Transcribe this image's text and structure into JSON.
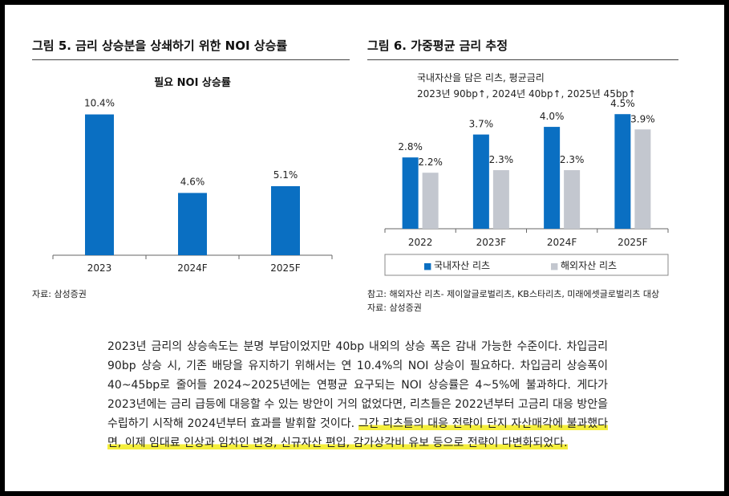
{
  "fig5": {
    "title": "그림 5. 금리 상승분을 상쇄하기 위한 NOI 상승률",
    "source": "자료: 삼성증권"
  },
  "fig6": {
    "title": "그림 6. 가중평균 금리 추정",
    "note": "참고: 해외자산 리츠- 제이알글로벌리츠, KB스타리츠, 미래에셋글로벌리츠 대상",
    "source": "자료: 삼성증권"
  },
  "chart_data": [
    {
      "type": "bar",
      "title": "필요 NOI 상승률",
      "categories": [
        "2023",
        "2024F",
        "2025F"
      ],
      "values": [
        10.4,
        4.6,
        5.1
      ],
      "data_labels": [
        "10.4%",
        "4.6%",
        "5.1%"
      ],
      "ylim": [
        0,
        11.5
      ],
      "grid": false,
      "colors": [
        "#0a6fc2"
      ]
    },
    {
      "type": "bar",
      "annotation": [
        "국내자산을 담은 리츠, 평균금리",
        "2023년 90bp↑, 2024년 40bp↑, 2025년 45bp↑"
      ],
      "categories": [
        "2022",
        "2023F",
        "2024F",
        "2025F"
      ],
      "series": [
        {
          "name": "국내자산 리츠",
          "values": [
            2.8,
            3.7,
            4.0,
            4.5
          ],
          "labels": [
            "2.8%",
            "3.7%",
            "4.0%",
            "4.5%"
          ],
          "color": "#0a6fc2"
        },
        {
          "name": "해외자산 리츠",
          "values": [
            2.2,
            2.3,
            2.3,
            3.9
          ],
          "labels": [
            "2.2%",
            "2.3%",
            "2.3%",
            "3.9%"
          ],
          "color": "#c3c7cf"
        }
      ],
      "ylim": [
        0,
        5.2
      ],
      "grid": false,
      "legend": "bottom",
      "legend_markers": [
        "■",
        "■"
      ]
    }
  ],
  "paragraph": {
    "part1": "2023년 금리의 상승속도는 분명 부담이었지만 40bp 내외의 상승 폭은 감내 가능한 수준이다. 차입금리 90bp 상승 시, 기존 배당을 유지하기 위해서는 연 10.4%의 NOI 상승이 필요하다. 차입금리 상승폭이 40~45bp로 줄어들 2024~2025년에는 연평균 요구되는 NOI 상승률은 4~5%에 불과하다. 게다가 2023년에는 금리 급등에 대응할 수 있는 방안이 거의 없었다면, 리츠들은 2022년부터 고금리 대응 방안을 수립하기 시작해 2024년부터 효과를 발휘할 것이다. ",
    "highlight": "그간 리츠들의 대응 전략이 단지 자산매각에 불과했다면, 이제 임대료 인상과 임차인 변경, 신규자산 편입, 감가상각비 유보 등으로 전략이 다변화되었다."
  }
}
